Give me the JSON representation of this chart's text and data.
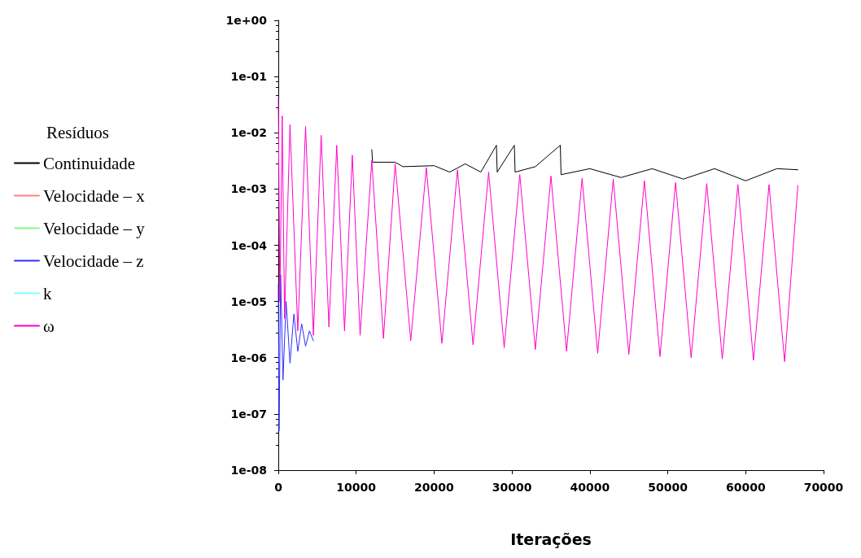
{
  "chart_data": {
    "type": "line",
    "xlabel": "Iterações",
    "legend_title": "Resíduos",
    "legend": "left",
    "grid": false,
    "marker": "none",
    "line_style": "solid",
    "log": "y",
    "xlim": [
      0,
      70000
    ],
    "xticks": [
      0,
      10000,
      20000,
      30000,
      40000,
      50000,
      60000,
      70000
    ],
    "ylim": [
      1e-08,
      1
    ],
    "yticks": [
      {
        "value": 1e-08,
        "label": "1e-08"
      },
      {
        "value": 1e-07,
        "label": "1e-07"
      },
      {
        "value": 1e-06,
        "label": "1e-06"
      },
      {
        "value": 1e-05,
        "label": "1e-05"
      },
      {
        "value": 0.0001,
        "label": "1e-04"
      },
      {
        "value": 0.001,
        "label": "1e-03"
      },
      {
        "value": 0.01,
        "label": "1e-02"
      },
      {
        "value": 0.1,
        "label": "1e-01"
      },
      {
        "value": 1,
        "label": "1e+00"
      }
    ],
    "series": [
      {
        "name": "Continuidade",
        "color": "#000000",
        "x": [
          12000,
          12100,
          15000,
          16000,
          20000,
          22000,
          24000,
          26000,
          28000,
          28100,
          30300,
          30400,
          33000,
          36200,
          36300,
          40000,
          44000,
          48000,
          52000,
          56000,
          60000,
          64000,
          66700
        ],
        "values": [
          0.005,
          0.003,
          0.003,
          0.0025,
          0.0026,
          0.002,
          0.0028,
          0.002,
          0.006,
          0.002,
          0.006,
          0.002,
          0.0025,
          0.006,
          0.0018,
          0.0023,
          0.0016,
          0.0023,
          0.0015,
          0.0023,
          0.0014,
          0.0023,
          0.0022
        ]
      },
      {
        "name": "Velocidade – x",
        "color": "#ff8080"
      },
      {
        "name": "Velocidade – y",
        "color": "#80ff80"
      },
      {
        "name": "Velocidade – z",
        "color": "#3030ff",
        "x": [
          0,
          100,
          300,
          600,
          1000,
          1500,
          2000,
          2500,
          3000,
          3500,
          4000,
          4500
        ],
        "values": [
          2e-05,
          5e-08,
          3e-05,
          4e-07,
          1e-05,
          8e-07,
          6e-06,
          1.3e-06,
          4e-06,
          1.6e-06,
          3e-06,
          2e-06
        ]
      },
      {
        "name": "k",
        "color": "#80ffff"
      },
      {
        "name": "ω",
        "color": "#ff00cc",
        "x": [
          0,
          200,
          500,
          800,
          1500,
          2500,
          3500,
          4500,
          5500,
          6500,
          7500,
          8500,
          9500,
          10500,
          12000,
          13500,
          15000,
          17000,
          19000,
          21000,
          23000,
          25000,
          27000,
          29000,
          31000,
          33000,
          35000,
          37000,
          39000,
          41000,
          43000,
          45000,
          47000,
          49000,
          51000,
          53000,
          55000,
          57000,
          59000,
          61000,
          63000,
          65000,
          66700
        ],
        "values": [
          0.04,
          1e-05,
          0.02,
          5e-06,
          0.014,
          3e-06,
          0.013,
          2.5e-06,
          0.009,
          3.5e-06,
          0.006,
          3e-06,
          0.004,
          2.5e-06,
          0.0032,
          2.2e-06,
          0.0028,
          2e-06,
          0.0024,
          1.8e-06,
          0.0022,
          1.7e-06,
          0.002,
          1.5e-06,
          0.0018,
          1.4e-06,
          0.0017,
          1.3e-06,
          0.00155,
          1.2e-06,
          0.0015,
          1.15e-06,
          0.0014,
          1.05e-06,
          0.0013,
          1e-06,
          0.00125,
          9.5e-07,
          0.0012,
          9e-07,
          0.0012,
          8.5e-07,
          0.00115
        ]
      }
    ]
  }
}
